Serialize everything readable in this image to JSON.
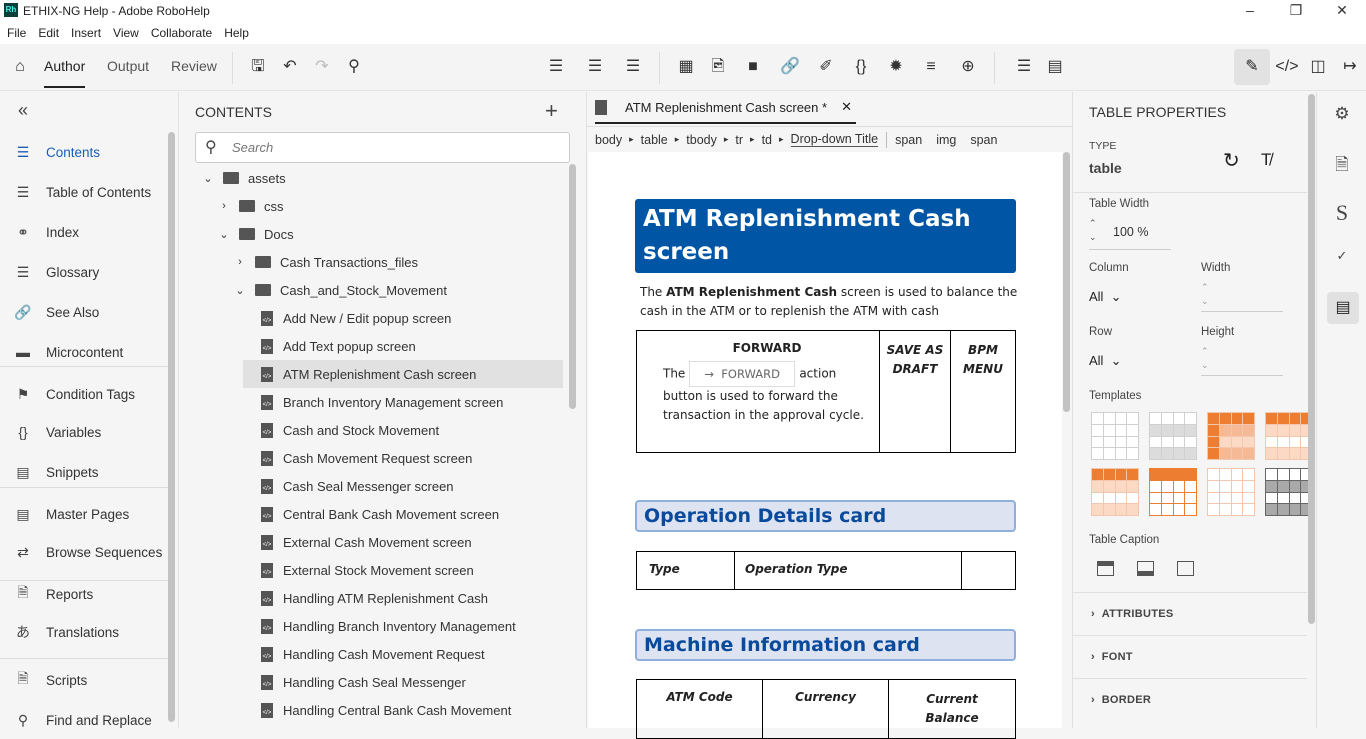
{
  "window": {
    "title": "ETHIX-NG Help - Adobe RoboHelp",
    "logo": "Rh"
  },
  "menu": [
    "File",
    "Edit",
    "Insert",
    "View",
    "Collaborate",
    "Help"
  ],
  "modes": {
    "author": "Author",
    "output": "Output",
    "review": "Review"
  },
  "left_nav": {
    "items": [
      {
        "label": "Contents",
        "icon": "contents-icon"
      },
      {
        "label": "Table of Contents",
        "icon": "toc-icon"
      },
      {
        "label": "Index",
        "icon": "key-icon"
      },
      {
        "label": "Glossary",
        "icon": "list-icon"
      },
      {
        "label": "See Also",
        "icon": "link-icon"
      },
      {
        "label": "Microcontent",
        "icon": "microcontent-icon"
      },
      {
        "label": "Condition Tags",
        "icon": "tag-icon"
      },
      {
        "label": "Variables",
        "icon": "braces-icon"
      },
      {
        "label": "Snippets",
        "icon": "snippet-icon"
      },
      {
        "label": "Master Pages",
        "icon": "master-page-icon"
      },
      {
        "label": "Browse Sequences",
        "icon": "sequence-icon"
      },
      {
        "label": "Reports",
        "icon": "report-icon"
      },
      {
        "label": "Translations",
        "icon": "translate-icon"
      },
      {
        "label": "Scripts",
        "icon": "script-icon"
      },
      {
        "label": "Find and Replace",
        "icon": "find-replace-icon"
      }
    ]
  },
  "contents": {
    "title": "CONTENTS",
    "search_placeholder": "Search",
    "tree": [
      {
        "label": "assets",
        "type": "folder",
        "depth": 0,
        "open": true
      },
      {
        "label": "css",
        "type": "folder",
        "depth": 1,
        "open": false
      },
      {
        "label": "Docs",
        "type": "folder",
        "depth": 1,
        "open": true
      },
      {
        "label": "Cash Transactions_files",
        "type": "folder",
        "depth": 2,
        "open": false
      },
      {
        "label": "Cash_and_Stock_Movement",
        "type": "folder",
        "depth": 2,
        "open": true
      },
      {
        "label": "Add New / Edit popup screen",
        "type": "file",
        "depth": 3
      },
      {
        "label": "Add Text popup screen",
        "type": "file",
        "depth": 3
      },
      {
        "label": "ATM Replenishment Cash screen",
        "type": "file",
        "depth": 3,
        "selected": true
      },
      {
        "label": "Branch Inventory Management screen",
        "type": "file",
        "depth": 3
      },
      {
        "label": "Cash and Stock Movement",
        "type": "file",
        "depth": 3
      },
      {
        "label": "Cash Movement Request screen",
        "type": "file",
        "depth": 3
      },
      {
        "label": "Cash Seal Messenger screen",
        "type": "file",
        "depth": 3
      },
      {
        "label": "Central Bank Cash Movement screen",
        "type": "file",
        "depth": 3
      },
      {
        "label": "External Cash Movement screen",
        "type": "file",
        "depth": 3
      },
      {
        "label": "External Stock Movement screen",
        "type": "file",
        "depth": 3
      },
      {
        "label": "Handling ATM Replenishment Cash",
        "type": "file",
        "depth": 3
      },
      {
        "label": "Handling Branch Inventory Management",
        "type": "file",
        "depth": 3
      },
      {
        "label": "Handling Cash Movement Request",
        "type": "file",
        "depth": 3
      },
      {
        "label": "Handling Cash Seal Messenger",
        "type": "file",
        "depth": 3
      },
      {
        "label": "Handling Central Bank Cash Movement",
        "type": "file",
        "depth": 3
      }
    ]
  },
  "editor": {
    "tab": "ATM Replenishment Cash screen *",
    "breadcrumb": [
      "body",
      "table",
      "tbody",
      "tr",
      "td",
      "Drop-down Title"
    ],
    "breadcrumb_extra": [
      "span",
      "img",
      "span"
    ],
    "doc": {
      "heading": "ATM Replenishment Cash screen",
      "intro_bold": "ATM Replenishment Cash",
      "intro_pre": "The ",
      "intro_post": " screen is used to balance the cash in the ATM or to replenish the ATM with cash",
      "fwd_title": "FORWARD",
      "fwd_button": "FORWARD",
      "fwd_pre": "The",
      "fwd_post": "action",
      "fwd_text": "button is used to forward the transaction in the approval cycle.",
      "save_draft": "SAVE AS DRAFT",
      "bpm_menu": "BPM MENU",
      "op_heading": "Operation Details card",
      "op_cells": [
        "Type",
        "Operation Type",
        ""
      ],
      "mi_heading": "Machine Information card",
      "mi_cells": [
        "ATM Code",
        "Currency",
        "Current Balance"
      ]
    }
  },
  "props": {
    "title": "TABLE PROPERTIES",
    "type_label": "TYPE",
    "type_value": "table",
    "width_label": "Table Width",
    "width_value": "100 %",
    "column_label": "Column",
    "column_value": "All",
    "col_width_label": "Width",
    "row_label": "Row",
    "row_value": "All",
    "height_label": "Height",
    "templates_label": "Templates",
    "caption_label": "Table Caption",
    "sections": [
      "ATTRIBUTES",
      "FONT",
      "BORDER"
    ],
    "accent": "#ed7d31"
  }
}
